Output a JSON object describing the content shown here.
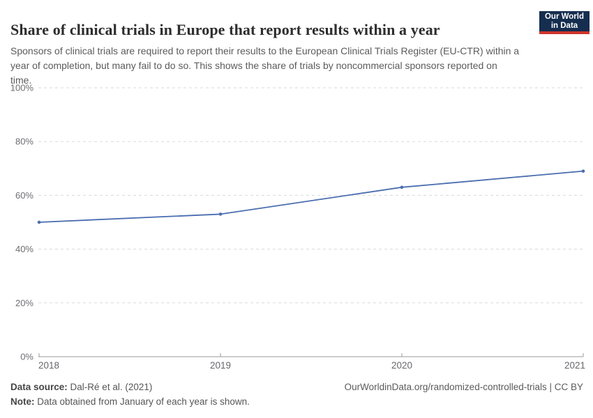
{
  "header": {
    "title": "Share of clinical trials in Europe that report results within a year",
    "subtitle": "Sponsors of clinical trials are required to report their results to the European Clinical Trials Register (EU-CTR) within a year of completion, but many fail to do so. This shows the share of trials by noncommercial sponsors reported on time.",
    "logo": {
      "line1": "Our World",
      "line2": "in Data",
      "background_color": "#152d4f",
      "accent_color": "#d0342c"
    }
  },
  "chart_data": {
    "type": "line",
    "title": "Share of clinical trials in Europe that report results within a year",
    "x": [
      2018,
      2019,
      2020,
      2021
    ],
    "values": [
      50,
      53,
      63,
      69
    ],
    "xlabel": "",
    "ylabel": "",
    "ylim": [
      0,
      100
    ],
    "yticks": [
      0,
      20,
      40,
      60,
      80,
      100
    ],
    "ytick_suffix": "%",
    "x_tick_labels": [
      "2018",
      "2019",
      "2020",
      "2021"
    ],
    "grid": "horizontal-dashed",
    "legend": "none",
    "line_color": "#4a6daf"
  },
  "footer": {
    "source_label": "Data source:",
    "source_value": "Dal-Ré et al. (2021)",
    "note_label": "Note:",
    "note_value": "Data obtained from January of each year is shown.",
    "right_text": "OurWorldinData.org/randomized-controlled-trials | CC BY"
  }
}
